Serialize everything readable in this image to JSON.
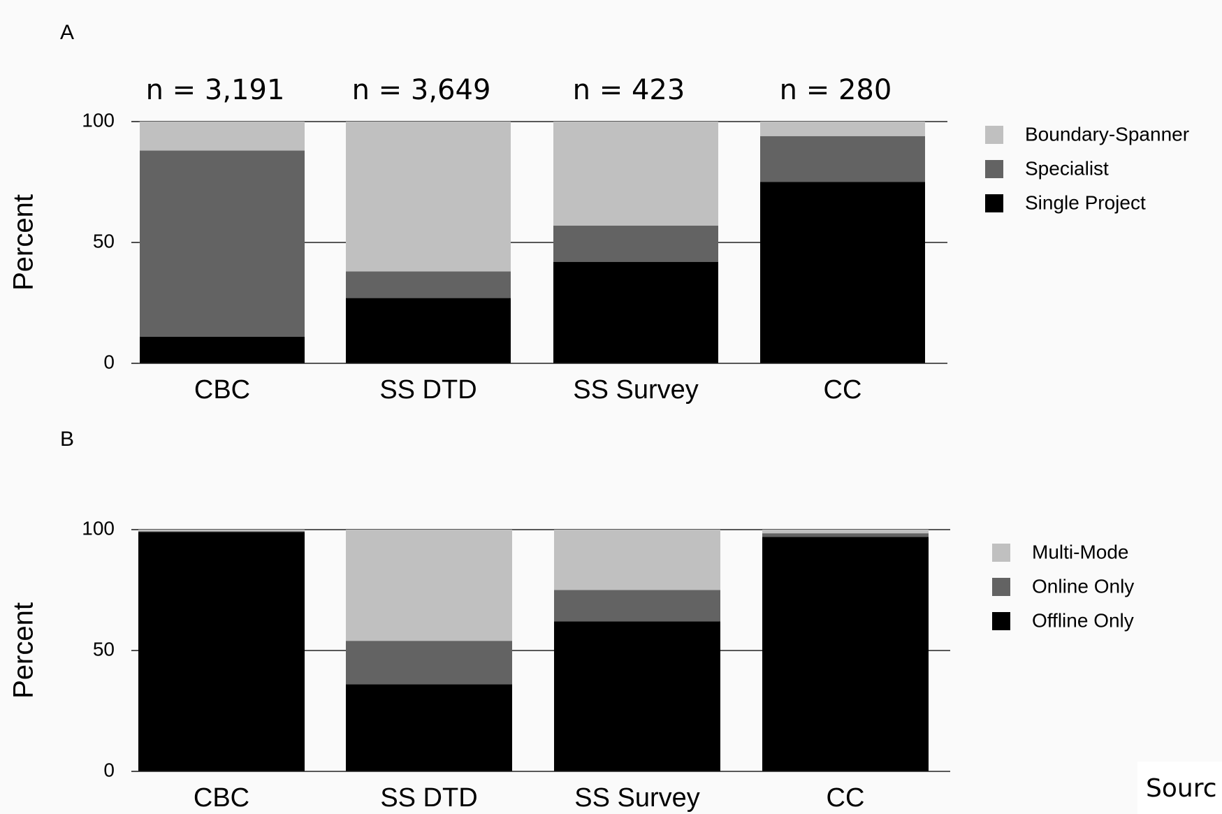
{
  "source_text": "Sourc",
  "chart_data": [
    {
      "panel": "A",
      "type": "bar",
      "stacked": true,
      "categories": [
        "CBC",
        "SS DTD",
        "SS Survey",
        "CC"
      ],
      "n_labels": [
        "n = 3,191",
        "n = 3,649",
        "n = 423",
        "n = 280"
      ],
      "ylabel": "Percent",
      "ylim": [
        0,
        100
      ],
      "yticks": [
        "0",
        "50",
        "100"
      ],
      "gridlines": [
        50,
        100
      ],
      "legend_position": "right",
      "series": [
        {
          "name": "Single Project",
          "color": "#000000",
          "values": [
            11,
            27,
            42,
            75
          ]
        },
        {
          "name": "Specialist",
          "color": "#636363",
          "values": [
            77,
            11,
            15,
            19
          ]
        },
        {
          "name": "Boundary-Spanner",
          "color": "#c0c0c0",
          "values": [
            12,
            62,
            43,
            6
          ]
        }
      ],
      "legend_order": [
        "Boundary-Spanner",
        "Specialist",
        "Single Project"
      ]
    },
    {
      "panel": "B",
      "type": "bar",
      "stacked": true,
      "categories": [
        "CBC",
        "SS DTD",
        "SS Survey",
        "CC"
      ],
      "ylabel": "Percent",
      "ylim": [
        0,
        100
      ],
      "yticks": [
        "0",
        "50",
        "100"
      ],
      "gridlines": [
        50,
        100
      ],
      "legend_position": "right",
      "series": [
        {
          "name": "Offline Only",
          "color": "#000000",
          "values": [
            99,
            36,
            62,
            97
          ]
        },
        {
          "name": "Online Only",
          "color": "#636363",
          "values": [
            0.3,
            18,
            13,
            1.5
          ]
        },
        {
          "name": "Multi-Mode",
          "color": "#c0c0c0",
          "values": [
            0.7,
            46,
            25,
            1.5
          ]
        }
      ],
      "legend_order": [
        "Multi-Mode",
        "Online Only",
        "Offline Only"
      ]
    }
  ]
}
